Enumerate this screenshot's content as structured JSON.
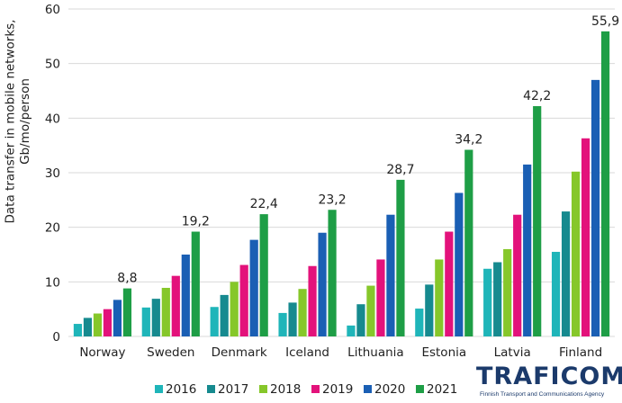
{
  "chart_data": {
    "type": "bar",
    "ylabel": "Data transfer in mobile networks, Gb/mo/person",
    "ylim": [
      0,
      60
    ],
    "yticks": [
      0,
      10,
      20,
      30,
      40,
      50,
      60
    ],
    "grid": true,
    "legend_position": "bottom",
    "categories": [
      "Norway",
      "Sweden",
      "Denmark",
      "Iceland",
      "Lithuania",
      "Estonia",
      "Latvia",
      "Finland"
    ],
    "series": [
      {
        "name": "2016",
        "color": "#1fb5b9",
        "values": [
          2.3,
          5.3,
          5.4,
          4.3,
          2.0,
          5.1,
          12.4,
          15.5
        ]
      },
      {
        "name": "2017",
        "color": "#168a8f",
        "values": [
          3.4,
          6.9,
          7.6,
          6.2,
          5.9,
          9.5,
          13.6,
          22.9
        ]
      },
      {
        "name": "2018",
        "color": "#86c72a",
        "values": [
          4.2,
          8.9,
          10.0,
          8.7,
          9.3,
          14.1,
          16.0,
          30.2
        ]
      },
      {
        "name": "2019",
        "color": "#e3127b",
        "values": [
          5.0,
          11.1,
          13.1,
          12.9,
          14.1,
          19.2,
          22.3,
          36.3
        ]
      },
      {
        "name": "2020",
        "color": "#1a5fb4",
        "values": [
          6.7,
          15.0,
          17.7,
          19.0,
          22.3,
          26.3,
          31.5,
          47.0
        ]
      },
      {
        "name": "2021",
        "color": "#1e9e46",
        "values": [
          8.8,
          19.2,
          22.4,
          23.2,
          28.7,
          34.2,
          42.2,
          55.9
        ]
      }
    ],
    "data_labels": [
      "8,8",
      "19,2",
      "22,4",
      "23,2",
      "28,7",
      "34,2",
      "42,2",
      "55,9"
    ]
  },
  "logo": {
    "name": "TRAFICOM",
    "subtitle": "Finnish Transport and Communications Agency"
  }
}
